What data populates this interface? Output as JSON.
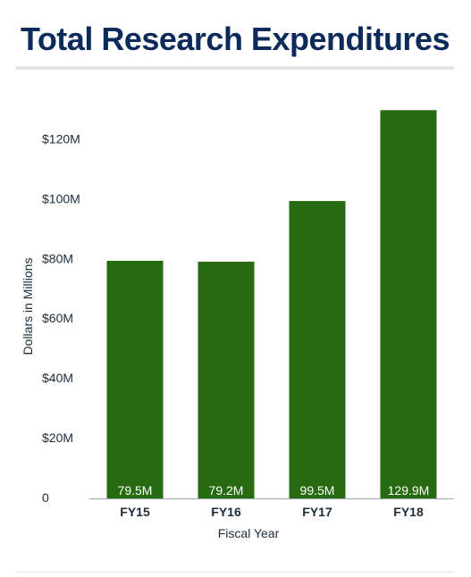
{
  "page": {
    "title": "Total Research Expenditures"
  },
  "colors": {
    "bar": "#266b0f",
    "title": "#0c2a5a",
    "axis": "#9aa7b4",
    "text": "#1c2b3a"
  },
  "chart_data": {
    "type": "bar",
    "title": "Total Research Expenditures",
    "xlabel": "Fiscal Year",
    "ylabel": "Dollars in Millions",
    "categories": [
      "FY15",
      "FY16",
      "FY17",
      "FY18"
    ],
    "values": [
      79.5,
      79.2,
      99.5,
      129.9
    ],
    "data_labels": [
      "79.5M",
      "79.2M",
      "99.5M",
      "129.9M"
    ],
    "ylim": [
      0,
      130
    ],
    "yticks": [
      0,
      20,
      40,
      60,
      80,
      100,
      120
    ],
    "ytick_labels": [
      "0",
      "$20M",
      "$40M",
      "$60M",
      "$80M",
      "$100M",
      "$120M"
    ],
    "grid": false,
    "legend": "none"
  }
}
